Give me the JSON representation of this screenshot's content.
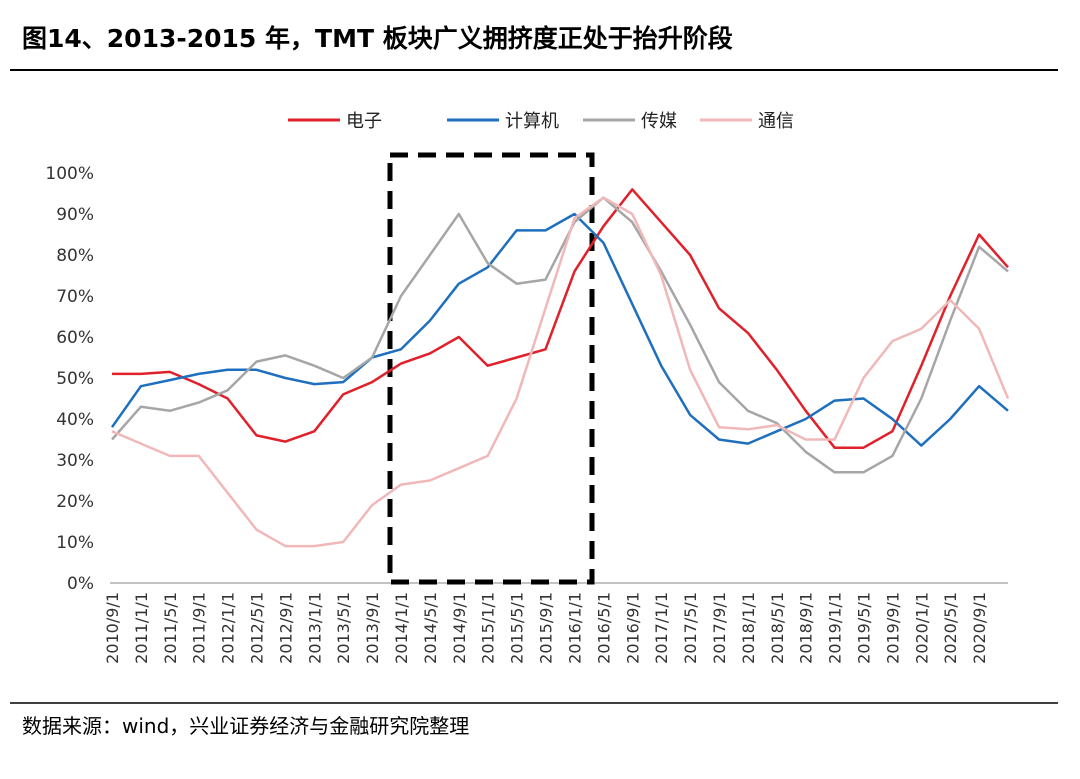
{
  "chart_data": {
    "type": "line",
    "title": "图14、2013-2015 年，TMT 板块广义拥挤度正处于抬升阶段",
    "source": "数据来源：wind，兴业证券经济与金融研究院整理",
    "categories": [
      "2010/9/1",
      "2011/1/1",
      "2011/5/1",
      "2011/9/1",
      "2012/1/1",
      "2012/5/1",
      "2012/9/1",
      "2013/1/1",
      "2013/5/1",
      "2013/9/1",
      "2014/1/1",
      "2014/5/1",
      "2014/9/1",
      "2015/1/1",
      "2015/5/1",
      "2015/9/1",
      "2016/1/1",
      "2016/5/1",
      "2016/9/1",
      "2017/1/1",
      "2017/5/1",
      "2017/9/1",
      "2018/1/1",
      "2018/5/1",
      "2018/9/1",
      "2019/1/1",
      "2019/5/1",
      "2019/9/1",
      "2020/1/1",
      "2020/5/1",
      "2020/9/1",
      null
    ],
    "series": [
      {
        "name": "电子",
        "color": "#e0202a",
        "values": [
          51,
          51,
          51.5,
          48.5,
          45,
          36,
          34.5,
          37,
          46,
          49,
          53.5,
          56,
          60,
          53,
          55,
          57,
          76,
          87,
          96,
          88,
          80,
          67,
          61,
          52,
          42,
          33,
          33,
          37,
          53,
          70,
          85,
          77
        ]
      },
      {
        "name": "计算机",
        "color": "#1f6fbf",
        "values": [
          38,
          48,
          49.5,
          51,
          52,
          52,
          50,
          48.5,
          49,
          55,
          57,
          64,
          73,
          77,
          86,
          86,
          90,
          83,
          68,
          53,
          41,
          35,
          34,
          37,
          40,
          44.5,
          45,
          40,
          33.5,
          40,
          48,
          42
        ]
      },
      {
        "name": "传媒",
        "color": "#a6a6a6",
        "values": [
          35,
          43,
          42,
          44,
          47,
          54,
          55.5,
          53,
          50,
          55,
          70,
          80,
          90,
          78,
          73,
          74,
          88,
          94,
          88,
          76,
          63,
          49,
          42,
          39,
          32,
          27,
          27,
          31,
          45,
          64,
          82,
          76
        ]
      },
      {
        "name": "通信",
        "color": "#f0b8b8",
        "values": [
          37,
          34,
          31,
          31,
          22,
          13,
          9,
          9,
          10,
          19,
          24,
          25,
          28,
          31,
          45,
          67,
          89,
          94,
          90,
          75,
          52,
          38,
          37.5,
          38.5,
          35,
          35,
          50,
          59,
          62,
          69,
          62,
          45
        ]
      }
    ],
    "ylim": [
      0,
      100
    ],
    "yticks": [
      {
        "value": 0,
        "label": "0%"
      },
      {
        "value": 10,
        "label": "10%"
      },
      {
        "value": 20,
        "label": "20%"
      },
      {
        "value": 30,
        "label": "30%"
      },
      {
        "value": 40,
        "label": "40%"
      },
      {
        "value": 50,
        "label": "50%"
      },
      {
        "value": 60,
        "label": "60%"
      },
      {
        "value": 70,
        "label": "70%"
      },
      {
        "value": 80,
        "label": "80%"
      },
      {
        "value": 90,
        "label": "90%"
      },
      {
        "value": 100,
        "label": "100%"
      }
    ],
    "grid": false,
    "legend": "top"
  }
}
